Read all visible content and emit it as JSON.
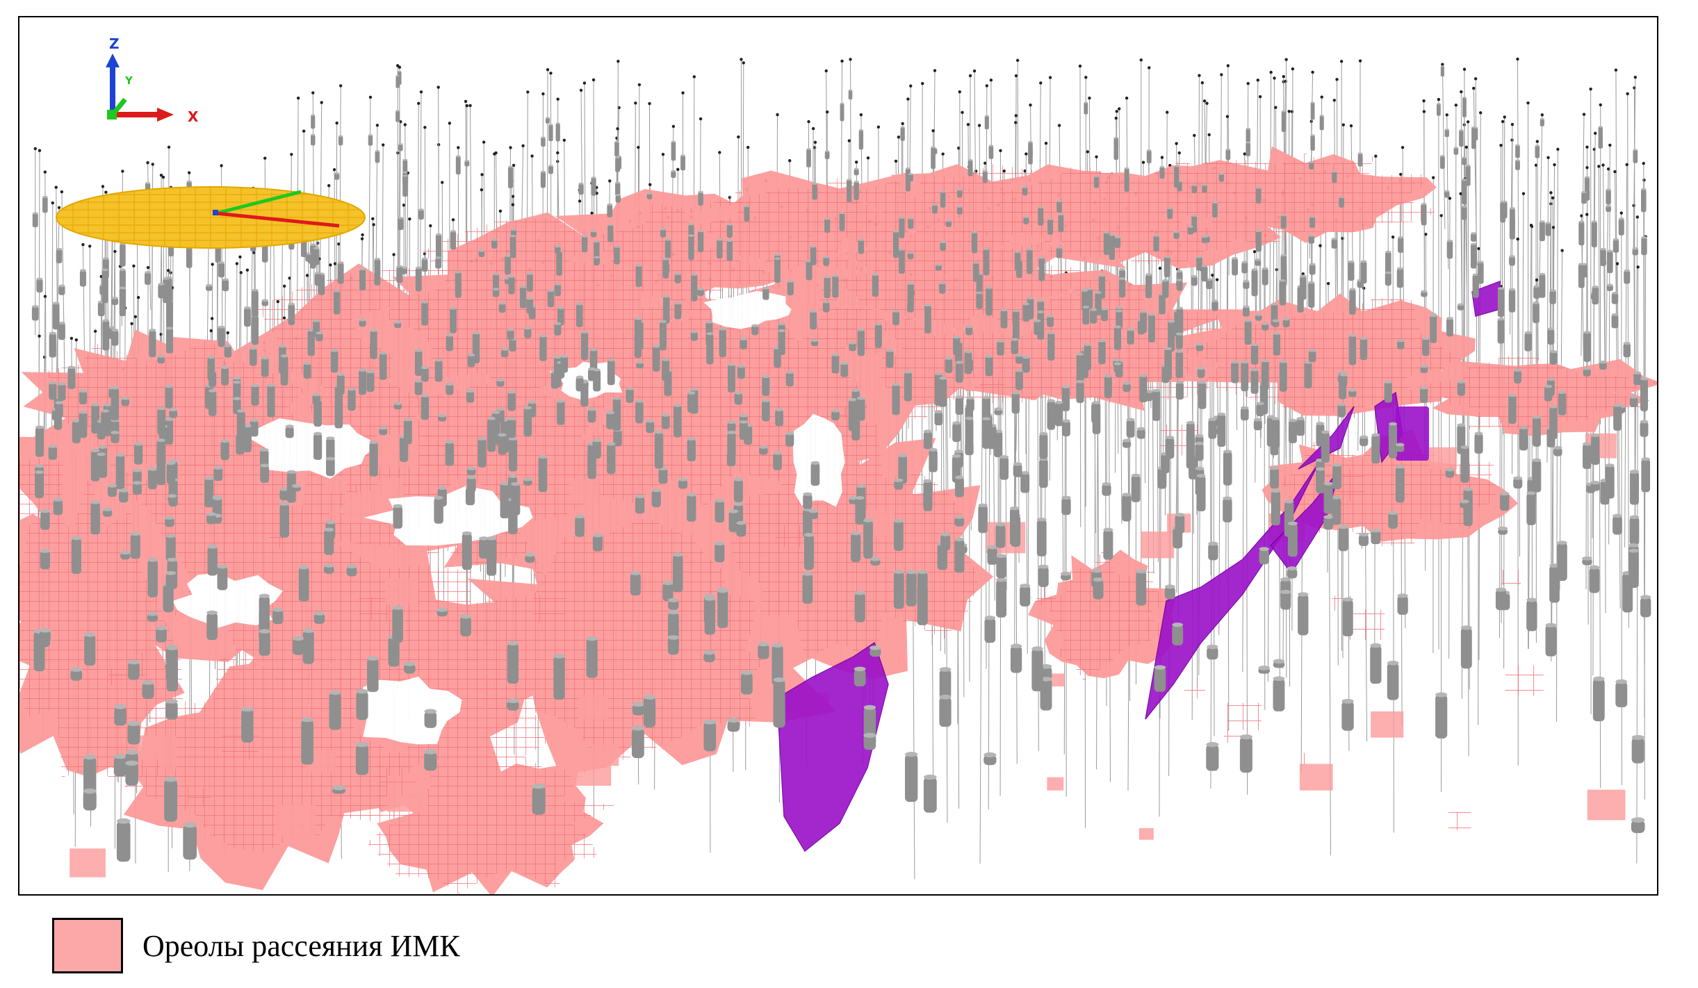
{
  "scene": {
    "axes": {
      "z_label": "Z",
      "y_label": "Y",
      "x_label": "X"
    },
    "colors": {
      "halo": "#fd9a9a",
      "halo_grid": "#f36c73",
      "ore_body": "#9b10c9",
      "ore_body_edge": "#7a00a8",
      "drill_core": "#8f8f8f",
      "drill_line": "#9a9a9a",
      "compass_fill": "#f5c22a",
      "axis_x": "#dd1a1a",
      "axis_y": "#1ec81e",
      "axis_z": "#1d43d6"
    }
  },
  "legend": {
    "items": [
      {
        "label": "Ореолы рассеяния ИМК",
        "color": "#fda8a8"
      }
    ]
  }
}
